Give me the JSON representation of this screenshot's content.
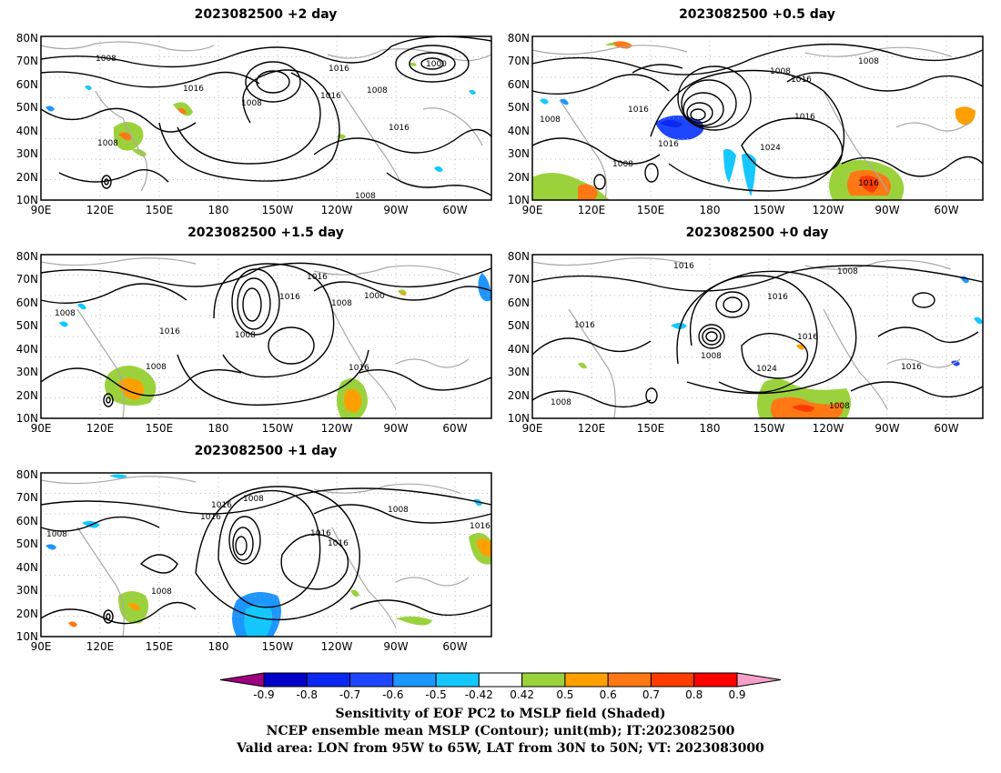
{
  "panels": [
    {
      "id": "p1",
      "title": "2023082500 +2 day",
      "xticks": [
        "90E",
        "120E",
        "150E",
        "180",
        "150W",
        "120W",
        "90W",
        "60W"
      ],
      "yticks": [
        "10N",
        "20N",
        "30N",
        "40N",
        "50N",
        "60N",
        "70N",
        "80N"
      ],
      "contour_labels": [
        "1008",
        "1016",
        "1000",
        "1016",
        "1008",
        "1008",
        "1016",
        "1008",
        "1016",
        "1008"
      ]
    },
    {
      "id": "p2",
      "title": "2023082500 +0.5 day",
      "xticks": [
        "90E",
        "120E",
        "150E",
        "180",
        "150W",
        "120W",
        "90W",
        "60W"
      ],
      "yticks": [
        "10N",
        "20N",
        "30N",
        "40N",
        "50N",
        "60N",
        "70N",
        "80N"
      ],
      "contour_labels": [
        "1008",
        "1016",
        "1008",
        "1016",
        "1016",
        "1024",
        "1008",
        "1016",
        "1008",
        "1016"
      ]
    },
    {
      "id": "p3",
      "title": "2023082500 +1.5 day",
      "xticks": [
        "90E",
        "120E",
        "150E",
        "180",
        "150W",
        "120W",
        "90W",
        "60W"
      ],
      "yticks": [
        "10N",
        "20N",
        "30N",
        "40N",
        "50N",
        "60N",
        "70N",
        "80N"
      ],
      "contour_labels": [
        "1016",
        "1016",
        "1008",
        "1000",
        "1008",
        "1016",
        "1008",
        "1016",
        "1008"
      ]
    },
    {
      "id": "p4",
      "title": "2023082500 +0 day",
      "xticks": [
        "90E",
        "120E",
        "150E",
        "180",
        "150W",
        "120W",
        "90W",
        "60W"
      ],
      "yticks": [
        "10N",
        "20N",
        "30N",
        "40N",
        "50N",
        "60N",
        "70N",
        "80N"
      ],
      "contour_labels": [
        "1016",
        "1008",
        "1016",
        "1016",
        "1008",
        "1024",
        "1016",
        "1016",
        "1008",
        "1008"
      ]
    },
    {
      "id": "p5",
      "title": "2023082500 +1 day",
      "xticks": [
        "90E",
        "120E",
        "150E",
        "180",
        "150W",
        "120W",
        "90W",
        "60W"
      ],
      "yticks": [
        "10N",
        "20N",
        "30N",
        "40N",
        "50N",
        "60N",
        "70N",
        "80N"
      ],
      "contour_labels": [
        "1016",
        "1008",
        "1016",
        "1008",
        "1016",
        "1016",
        "1008",
        "1016",
        "1008"
      ]
    }
  ],
  "colorbar": {
    "labels": [
      "-0.9",
      "-0.8",
      "-0.7",
      "-0.6",
      "-0.5",
      "-0.42",
      "0.42",
      "0.5",
      "0.6",
      "0.7",
      "0.8",
      "0.9"
    ],
    "colors": [
      "#a0007d",
      "#0000c8",
      "#0a28f0",
      "#1e46ff",
      "#1e96ff",
      "#14c8ff",
      "#ffffff",
      "#9bd23c",
      "#ffa000",
      "#ff7814",
      "#ff3c00",
      "#ff0000",
      "#f5a0c8"
    ]
  },
  "caption": {
    "line1": "Sensitivity of EOF PC2 to MSLP field (Shaded)",
    "line2": "NCEP ensemble mean MSLP (Contour); unit(mb); IT:2023082500",
    "line3": "Valid area: LON from 95W to 65W, LAT from 30N to 50N; VT: 2023083000"
  }
}
